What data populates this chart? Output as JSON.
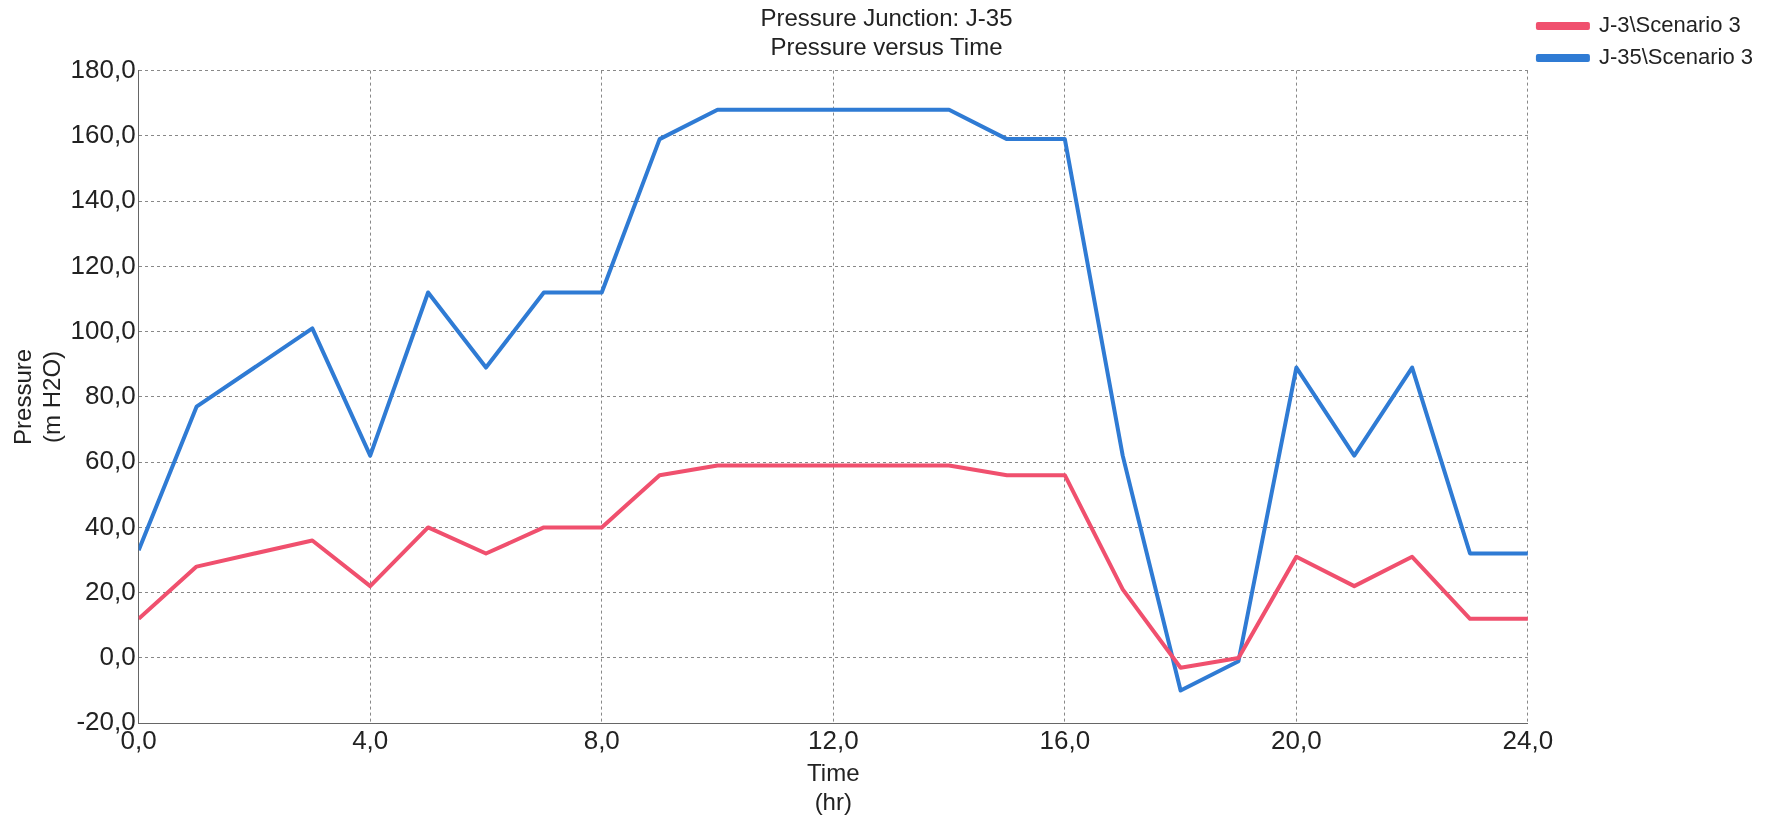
{
  "chart_data": {
    "type": "line",
    "title": "Pressure Junction: J-35",
    "subtitle": "Pressure versus Time",
    "xlabel": "Time\n(hr)",
    "ylabel": "Pressure\n(m H2O)",
    "x": [
      0,
      1,
      3,
      4,
      5,
      6,
      7,
      8,
      9,
      10,
      14,
      15,
      16,
      17,
      18,
      19,
      20,
      21,
      22,
      23,
      24
    ],
    "series": [
      {
        "name": "J-3\\Scenario 3",
        "color": "#f0506e",
        "values": [
          12,
          28,
          36,
          22,
          40,
          32,
          40,
          40,
          56,
          59,
          59,
          56,
          56,
          21,
          -3,
          0,
          31,
          22,
          31,
          12,
          12
        ]
      },
      {
        "name": "J-35\\Scenario 3",
        "color": "#2f7bd4",
        "values": [
          33,
          77,
          101,
          62,
          112,
          89,
          112,
          112,
          159,
          168,
          168,
          159,
          159,
          62,
          -10,
          -1,
          89,
          62,
          89,
          32,
          32
        ]
      }
    ],
    "xlim": [
      0,
      24
    ],
    "xticks": [
      {
        "value": 0,
        "label": "0,0"
      },
      {
        "value": 4,
        "label": "4,0"
      },
      {
        "value": 8,
        "label": "8,0"
      },
      {
        "value": 12,
        "label": "12,0"
      },
      {
        "value": 16,
        "label": "16,0"
      },
      {
        "value": 20,
        "label": "20,0"
      },
      {
        "value": 24,
        "label": "24,0"
      }
    ],
    "ylim": [
      -20,
      180
    ],
    "yticks": [
      {
        "value": -20,
        "label": "-20,0"
      },
      {
        "value": 0,
        "label": "0,0"
      },
      {
        "value": 20,
        "label": "20,0"
      },
      {
        "value": 40,
        "label": "40,0"
      },
      {
        "value": 60,
        "label": "60,0"
      },
      {
        "value": 80,
        "label": "80,0"
      },
      {
        "value": 100,
        "label": "100,0"
      },
      {
        "value": 120,
        "label": "120,0"
      },
      {
        "value": 140,
        "label": "140,0"
      },
      {
        "value": 160,
        "label": "160,0"
      },
      {
        "value": 180,
        "label": "180,0"
      }
    ],
    "grid": true,
    "legend": "top right",
    "line_style": "solid"
  }
}
